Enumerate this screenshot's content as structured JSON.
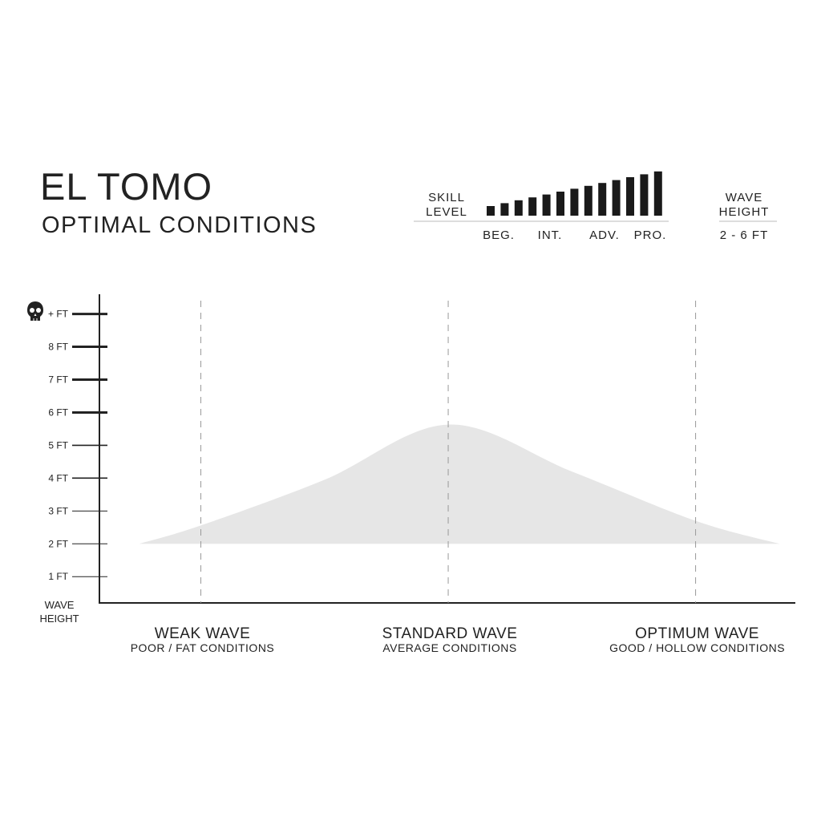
{
  "chart_data": {
    "type": "area",
    "title": "EL TOMO",
    "subtitle": "OPTIMAL CONDITIONS",
    "skill_label": [
      "SKILL",
      "LEVEL"
    ],
    "skill_levels": [
      "BEG.",
      "INT.",
      "ADV.",
      "PRO."
    ],
    "wave_height_label": [
      "WAVE",
      "HEIGHT"
    ],
    "wave_height_range": "2 - 6 FT",
    "y_label": [
      "WAVE",
      "HEIGHT"
    ],
    "categories": [
      "WEAK WAVE",
      "STANDARD WAVE",
      "OPTIMUM WAVE"
    ],
    "category_notes": [
      "POOR / FAT CONDITIONS",
      "AVERAGE CONDITIONS",
      "GOOD / HOLLOW CONDITIONS"
    ],
    "x": [
      -0.25,
      0,
      0.5,
      1,
      1.5,
      2,
      2.34
    ],
    "values": [
      2.0,
      2.56,
      3.95,
      5.63,
      4.2,
      2.7,
      2.0
    ],
    "color": "#e6e6e6",
    "xlim": [
      -0.41,
      2.4
    ],
    "ylim": [
      0.2,
      9.6
    ],
    "yticks": [
      {
        "value": 1,
        "label": "1 FT"
      },
      {
        "value": 2,
        "label": "2 FT"
      },
      {
        "value": 3,
        "label": "3 FT"
      },
      {
        "value": 4,
        "label": "4 FT"
      },
      {
        "value": 5,
        "label": "5 FT"
      },
      {
        "value": 6,
        "label": "6 FT"
      },
      {
        "value": 7,
        "label": "7 FT"
      },
      {
        "value": 8,
        "label": "8 FT"
      },
      {
        "value": 9,
        "label": "+ FT"
      }
    ]
  }
}
